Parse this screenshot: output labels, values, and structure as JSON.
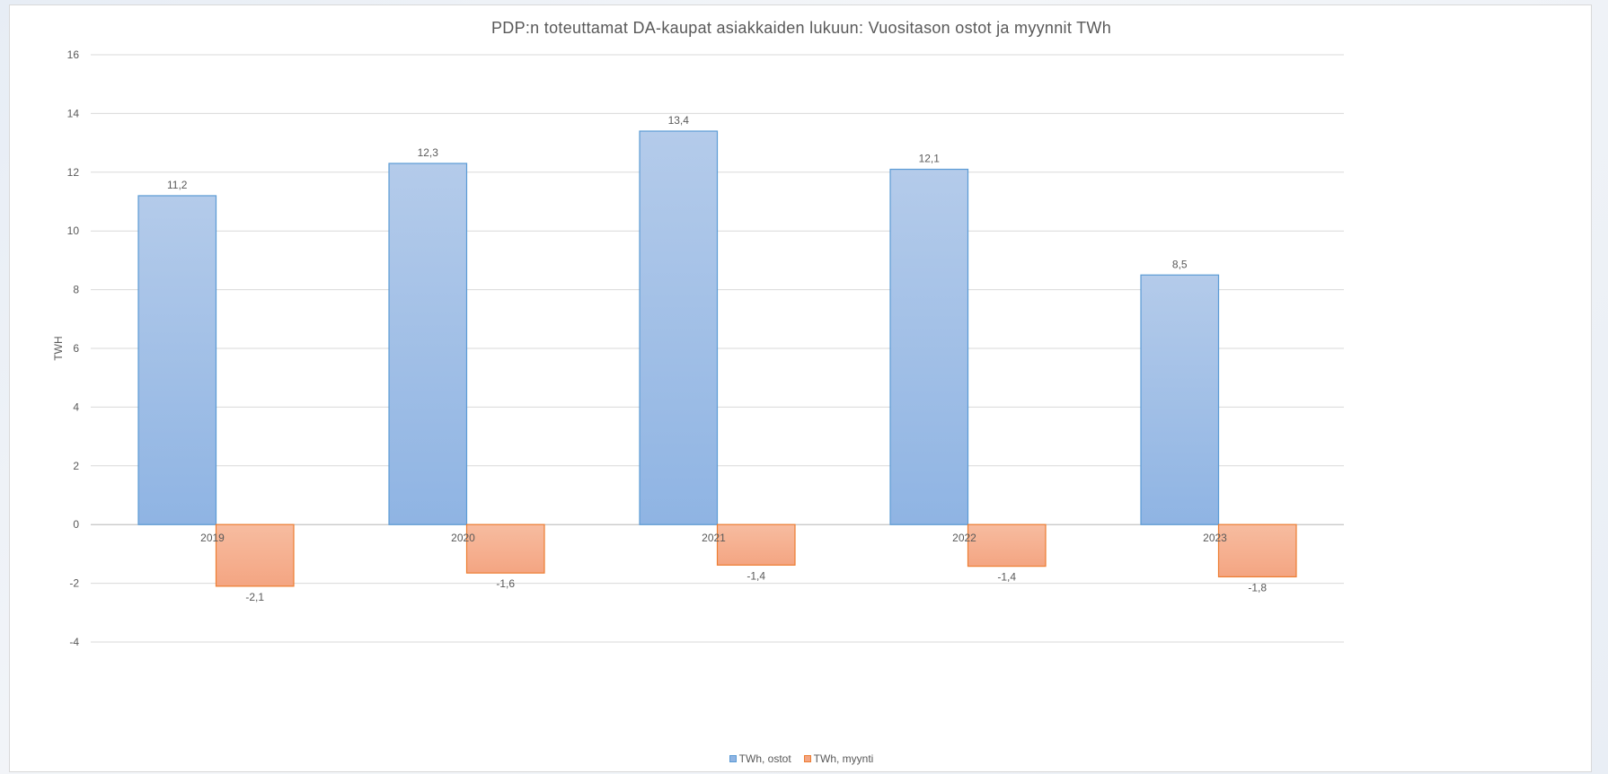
{
  "chart_data": {
    "type": "bar",
    "title": "PDP:n toteuttamat DA-kaupat asiakkaiden lukuun: Vuositason ostot ja myynnit TWh",
    "xlabel": "",
    "ylabel": "TWH",
    "categories": [
      "2019",
      "2020",
      "2021",
      "2022",
      "2023"
    ],
    "series": [
      {
        "name": "TWh, ostot",
        "values": [
          11.2,
          12.3,
          13.4,
          12.1,
          8.5
        ],
        "labels": [
          "11,2",
          "12,3",
          "13,4",
          "12,1",
          "8,5"
        ],
        "fill_top": "#b4cbea",
        "fill_bottom": "#8fb4e3",
        "stroke": "#5b9bd5"
      },
      {
        "name": "TWh, myynti",
        "values": [
          -2.1,
          -1.65,
          -1.38,
          -1.42,
          -1.78
        ],
        "labels": [
          "-2,1",
          "-1,6",
          "-1,4",
          "-1,4",
          "-1,8"
        ],
        "fill_top": "#f7bca0",
        "fill_bottom": "#f4a582",
        "stroke": "#ed7d31"
      }
    ],
    "ylim": [
      -4,
      16
    ],
    "yticks": [
      "-4",
      "-2",
      "0",
      "2",
      "4",
      "6",
      "8",
      "10",
      "12",
      "14",
      "16"
    ],
    "grid": true,
    "legend_position": "bottom"
  }
}
